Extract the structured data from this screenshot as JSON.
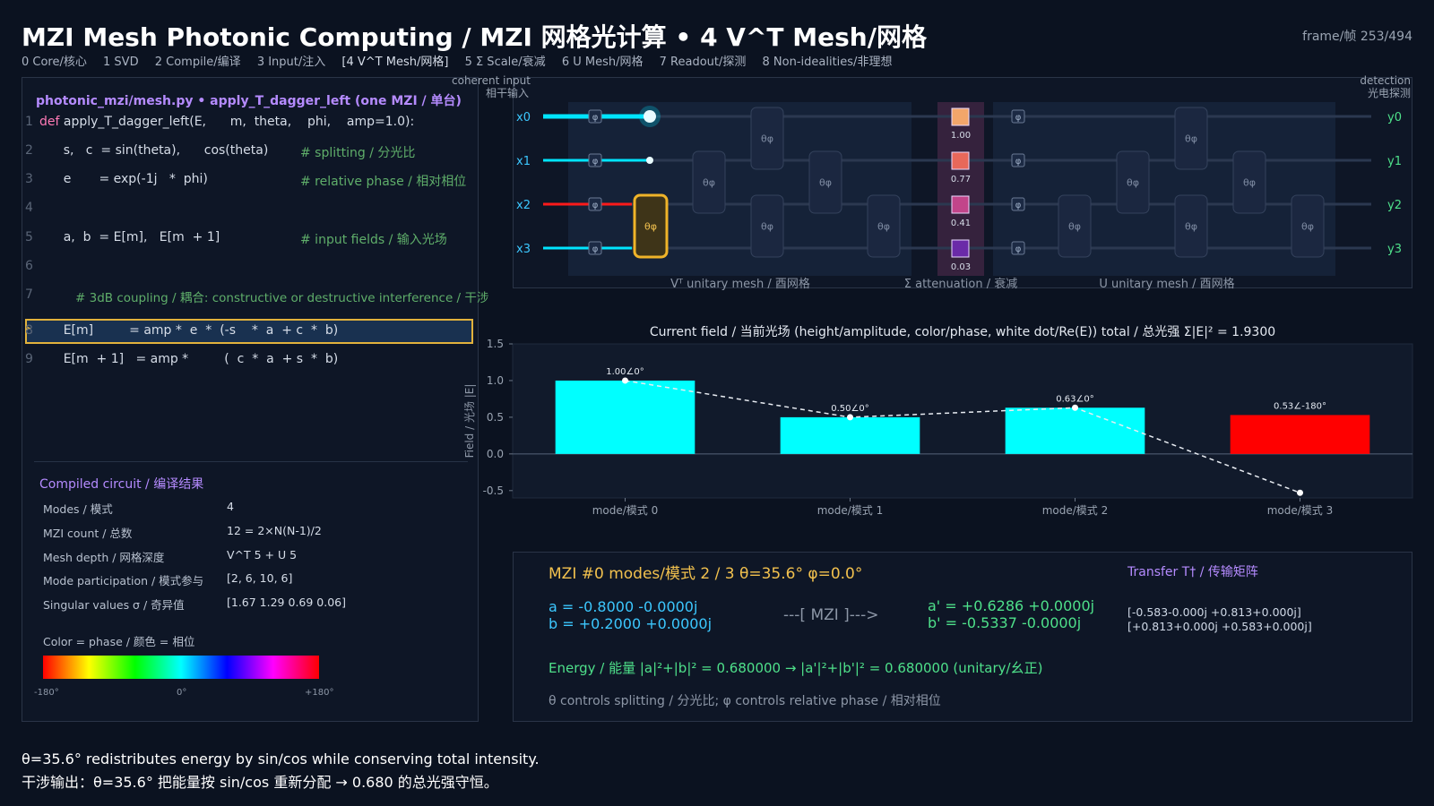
{
  "header": {
    "title": "MZI Mesh Photonic Computing / MZI 网格光计算 • 4 V^T Mesh/网格",
    "frame": "frame/帧 253/494",
    "nav": [
      "0 Core/核心",
      "1 SVD",
      "2 Compile/编译",
      "3 Input/注入",
      "[4 V^T Mesh/网格]",
      "5 Σ Scale/衰减",
      "6 U Mesh/网格",
      "7 Readout/探测",
      "8 Non-idealities/非理想"
    ]
  },
  "code": {
    "header": "photonic_mzi/mesh.py • apply_T_dagger_left (one MZI / 单台)",
    "lines": [
      {
        "n": "1",
        "kw": "def",
        "text": " apply_T_dagger_left(E,      m,  theta,    phi,    amp=1.0):",
        "comment": ""
      },
      {
        "n": "2",
        "kw": "",
        "text": "      s,   c  = sin(theta),      cos(theta)",
        "comment": "# splitting / 分光比"
      },
      {
        "n": "3",
        "kw": "",
        "text": "      e       = exp(-1j   *  phi)",
        "comment": "# relative phase / 相对相位"
      },
      {
        "n": "4",
        "kw": "",
        "text": "",
        "comment": ""
      },
      {
        "n": "5",
        "kw": "",
        "text": "      a,  b  = E[m],   E[m  + 1]",
        "comment": "# input fields / 输入光场"
      },
      {
        "n": "6",
        "kw": "",
        "text": "",
        "comment": ""
      },
      {
        "n": "7",
        "kw": "",
        "text": "      ",
        "comment": "# 3dB coupling / 耦合: constructive or destructive interference / 干涉"
      },
      {
        "n": "8",
        "kw": "",
        "text": "      E[m]         = amp *  e  *  (-s    *  a  + c  *  b)",
        "comment": ""
      },
      {
        "n": "9",
        "kw": "",
        "text": "      E[m  + 1]   = amp *         (  c  *  a  + s  *  b)",
        "comment": ""
      }
    ]
  },
  "compiled": {
    "title": "Compiled circuit / 编译结果",
    "rows": [
      {
        "k": "Modes / 模式",
        "v": "4"
      },
      {
        "k": "MZI count / 总数",
        "v": "12 = 2×N(N-1)/2"
      },
      {
        "k": "Mesh depth / 网格深度",
        "v": "V^T 5 + U 5"
      },
      {
        "k": "Mode participation / 模式参与",
        "v": "[2, 6, 10, 6]"
      },
      {
        "k": "Singular values σ / 奇异值",
        "v": "[1.67 1.29 0.69 0.06]"
      }
    ],
    "color_label": "Color = phase / 颜色 = 相位",
    "cb_ticks": [
      "-180°",
      "0°",
      "+180°"
    ]
  },
  "mesh": {
    "coherent_input": [
      "coherent input",
      "相干输入"
    ],
    "detection": [
      "detection",
      "光电探测"
    ],
    "inputs": [
      "x0",
      "x1",
      "x2",
      "x3"
    ],
    "outputs": [
      "y0",
      "y1",
      "y2",
      "y3"
    ],
    "mzi_label": "θφ",
    "phase_label": "φ",
    "sigma": [
      "1.00",
      "0.77",
      "0.41",
      "0.03"
    ],
    "sigma_colors": [
      "#f2a66a",
      "#e8685a",
      "#c2458a",
      "#6a2aa8"
    ],
    "vt_label": "Vᵀ unitary mesh / 酉网格",
    "sigma_label": "Σ attenuation / 衰减",
    "u_label": "U unitary mesh / 酉网格"
  },
  "chart": {
    "title": "Current field / 当前光场 (height/amplitude, color/phase, white dot/Re(E))   total / 总光强 Σ|E|² = 1.9300"
  },
  "chart_data": {
    "type": "bar",
    "categories": [
      "mode/模式 0",
      "mode/模式 1",
      "mode/模式 2",
      "mode/模式 3"
    ],
    "values": [
      1.0,
      0.5,
      0.63,
      0.53
    ],
    "colors": [
      "#00ffff",
      "#00ffff",
      "#00ffff",
      "#ff0000"
    ],
    "labels": [
      "1.00∠0°",
      "0.50∠0°",
      "0.63∠0°",
      "0.53∠-180°"
    ],
    "re_values": [
      1.0,
      0.5,
      0.63,
      -0.53
    ],
    "ylabel": "Field / 光场 |E|",
    "ylim": [
      -0.6,
      1.5
    ],
    "yticks": [
      "1.5",
      "1.0",
      "0.5",
      "0.0",
      "-0.5"
    ],
    "ytick_values": [
      1.5,
      1.0,
      0.5,
      0.0,
      -0.5
    ]
  },
  "mzi": {
    "title": "MZI #0   modes/模式 2 / 3   θ=35.6°  φ=0.0°",
    "a": "a  = -0.8000 -0.0000j",
    "b": "b  = +0.2000 +0.0000j",
    "arrow": "---[ MZI ]--->",
    "a_out": "a'  = +0.6286 +0.0000j",
    "b_out": "b'  = -0.5337 -0.0000j",
    "transfer_title": "Transfer T† / 传输矩阵",
    "t_row1": "[-0.583-0.000j  +0.813+0.000j]",
    "t_row2": "[+0.813+0.000j  +0.583+0.000j]",
    "energy": "Energy / 能量  |a|²+|b|² = 0.680000   →   |a'|²+|b'|² = 0.680000   (unitary/幺正)",
    "note": "θ controls splitting / 分光比; φ controls relative phase / 相对相位"
  },
  "caption": {
    "line1": "θ=35.6° redistributes energy by sin/cos while conserving total intensity.",
    "line2": "干涉输出：θ=35.6° 把能量按 sin/cos 重新分配 → 0.680 的总光强守恒。"
  }
}
